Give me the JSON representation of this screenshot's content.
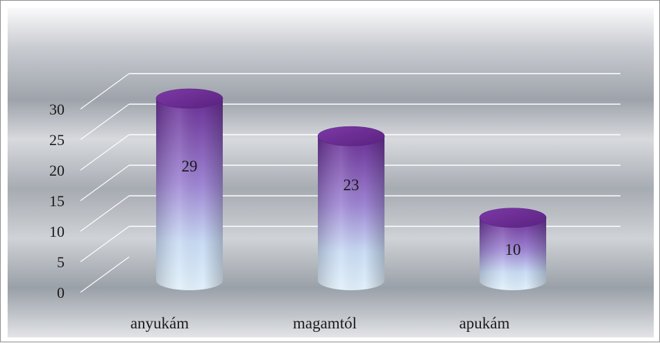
{
  "chart_data": {
    "type": "bar",
    "style": "3d-cylinder",
    "categories": [
      "anyukám",
      "magamtól",
      "apukám"
    ],
    "values": [
      29,
      23,
      10
    ],
    "data_labels": [
      "29",
      "23",
      "10"
    ],
    "title": "",
    "xlabel": "",
    "ylabel": "",
    "ylim": [
      0,
      30
    ],
    "yticks": [
      "0",
      "5",
      "10",
      "15",
      "20",
      "25",
      "30"
    ],
    "grid": true,
    "legend": "none",
    "colors": {
      "bar_top": "#6a2f96",
      "bar_mid": "#a78fd8",
      "bar_bottom": "#d8ecf8",
      "cap": "#6b2a8f",
      "gridline": "#ffffff",
      "background_dark": "#8e939c",
      "background_light": "#f2f3f5"
    }
  }
}
